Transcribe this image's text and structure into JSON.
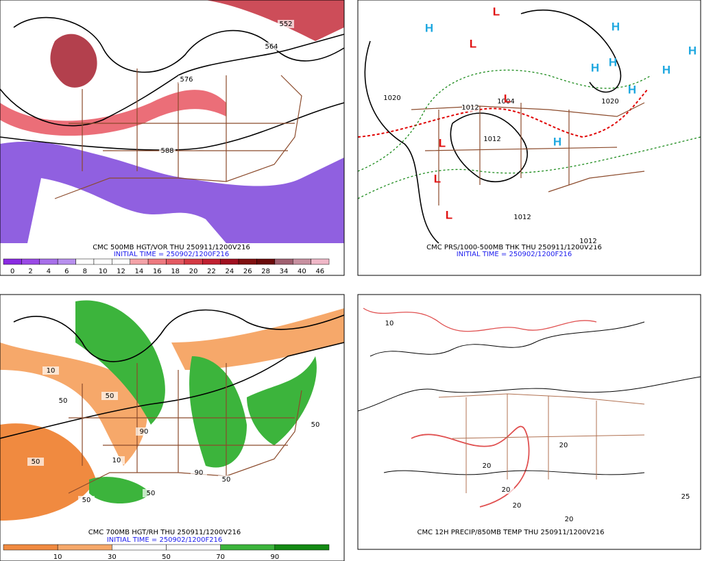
{
  "panels": [
    {
      "caption": "CMC 500MB HGT/VOR THU 250911/1200V216",
      "initial_time": "INITIAL TIME = 250902/1200F216",
      "contour_labels": [
        "552",
        "564",
        "576",
        "588"
      ],
      "colorbar": {
        "labels": [
          "0",
          "2",
          "4",
          "6",
          "8",
          "10",
          "12",
          "14",
          "16",
          "18",
          "20",
          "22",
          "24",
          "26",
          "28",
          "34",
          "40",
          "46"
        ],
        "colors": [
          "#8a2be2",
          "#9a4ae6",
          "#a870ea",
          "#b890ee",
          "#ffffff",
          "#ffffff",
          "#ffffff",
          "#f4a3a8",
          "#ee7a80",
          "#e45a62",
          "#d43a44",
          "#c02030",
          "#a01020",
          "#801010",
          "#6a0a0a",
          "#a06070",
          "#c890a0",
          "#f0b8c8"
        ]
      }
    },
    {
      "caption": "CMC PRS/1000-500MB THK THU 250911/1200V216",
      "initial_time": "INITIAL TIME = 250902/1200F216",
      "contour_labels": [
        "1020",
        "1012",
        "1004",
        "1012",
        "1012",
        "1012",
        "1020"
      ],
      "highs": [
        "H",
        "H",
        "H",
        "H",
        "H",
        "H",
        "H",
        "H"
      ],
      "lows": [
        "L",
        "L",
        "L",
        "L",
        "L",
        "L"
      ]
    },
    {
      "caption": "CMC 700MB HGT/RH THU 250911/1200V216",
      "initial_time": "INITIAL TIME = 250902/1200F216",
      "contour_labels": [
        "10",
        "50",
        "50",
        "90",
        "50",
        "10",
        "50",
        "50",
        "90",
        "50",
        "50"
      ],
      "colorbar": {
        "labels": [
          "10",
          "30",
          "50",
          "70",
          "90"
        ],
        "colors": [
          "#f08a40",
          "#f6a86a",
          "#ffffff",
          "#ffffff",
          "#3cb43c",
          "#138a13"
        ]
      }
    },
    {
      "caption": "CMC 12H PRECIP/850MB TEMP THU 250911/1200V216",
      "contour_labels": [
        "10",
        "20",
        "20",
        "20",
        "20",
        "20",
        "25"
      ]
    }
  ]
}
